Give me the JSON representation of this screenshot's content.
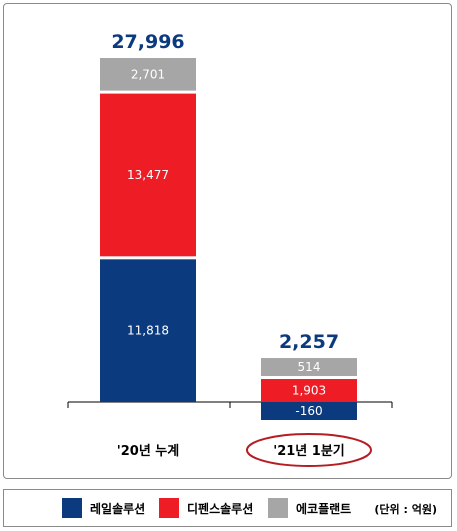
{
  "colors": {
    "rail": "#0b3a7e",
    "defense": "#ee1c25",
    "eco": "#a6a6a6",
    "total": "#0b3a7e",
    "highlight_ring": "#b41e23"
  },
  "chart_data": {
    "type": "bar",
    "stacked": true,
    "categories": [
      "'20년 누계",
      "'21년 1분기"
    ],
    "series": [
      {
        "name": "레일솔루션",
        "values": [
          11818,
          -160
        ]
      },
      {
        "name": "디펜스솔루션",
        "values": [
          13477,
          1903
        ]
      },
      {
        "name": "에코플랜트",
        "values": [
          2701,
          514
        ]
      }
    ],
    "value_labels": [
      [
        "11,818",
        "13,477",
        "2,701"
      ],
      [
        "-160",
        "1,903",
        "514"
      ]
    ],
    "totals": [
      "27,996",
      "2,257"
    ],
    "unit_note": "(단위 : 억원)",
    "highlighted_category": "'21년 1분기",
    "ylim": [
      -160,
      27996
    ],
    "grid": false,
    "legend_position": "bottom"
  }
}
